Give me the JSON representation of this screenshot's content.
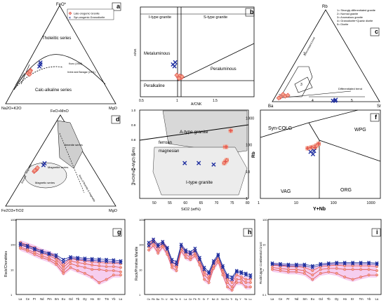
{
  "panels": {
    "a": {
      "letter": "a",
      "apex_top": "FeO*",
      "apex_left": "Na2O+K2O",
      "apex_right": "MgO",
      "label_tholeiitic": "Tholeiitic series",
      "label_calc": "Calc-alkaline series",
      "label_kuno": "Kuno (1968)",
      "label_irvine": "Irvine and Baragar (1971)",
      "label_differentiated": "Differentiated",
      "legend_late": "Late-orogenic Granite",
      "legend_syn": "Syn-orogenic Granodiorite"
    },
    "b": {
      "letter": "b",
      "label_itype": "I-type granite",
      "label_stype": "S-type granite",
      "label_metaluminous": "Metaluminous",
      "label_peraluminous": "Peraluminous",
      "label_peralkaline": "Peralkaline",
      "xlabel": "A/CNK",
      "ylabel": "A/NK",
      "x_ticks": [
        "0.5",
        "1",
        "1.5"
      ],
      "y_ticks": [
        "0.5",
        "1",
        "1.5",
        "2",
        "2.5",
        "3"
      ]
    },
    "c": {
      "letter": "c",
      "apex_top": "Rb",
      "apex_left": "Ba",
      "apex_right": "Sr",
      "legend": [
        "1= Strongly differentiated granite",
        "2= Normal granite",
        "3= Anomalous granite",
        "4= Granodiorite+Quartz diorite",
        "5= Diorite"
      ],
      "zone_labels": [
        "1",
        "2",
        "3",
        "4",
        "5"
      ],
      "label_diff_trend": "Differentiated trend"
    },
    "d": {
      "letter": "d",
      "apex_top": "FeO+MnO",
      "apex_left": "Fe2O3+TiO2",
      "apex_right": "MgO",
      "label_ilmenite": "Ilmenite series",
      "label_magnetite": "Magnetite series",
      "label_magnetic": "Magnetic series",
      "label_area": "Area of ilmenite & magnetite",
      "label_magnetite_axis": "Magnetite",
      "label_ilmenite_axis": "Ilmenite"
    },
    "e": {
      "letter": "e",
      "label_atype": "A-type granite",
      "label_ferroan": "ferroan",
      "label_magnesian": "magnesian",
      "label_itype": "I-type granite",
      "xlabel": "SiO2 (wt%)",
      "ylabel": "FeO/(FeO+MgO) (wt%)",
      "x_ticks": [
        "50",
        "55",
        "60",
        "65",
        "70",
        "75",
        "80"
      ],
      "y_ticks": [
        "0.5",
        "0.6",
        "0.7",
        "0.8",
        "0.9",
        "1.0"
      ]
    },
    "f": {
      "letter": "f",
      "label_syncolg": "Syn-COLG",
      "label_wpg": "WPG",
      "label_vag": "VAG",
      "label_org": "ORG",
      "xlabel": "Y+Nb",
      "ylabel": "Rb",
      "x_ticks": [
        "1",
        "10",
        "100",
        "1000"
      ],
      "y_ticks": [
        "1",
        "10",
        "100",
        "1000"
      ]
    },
    "g": {
      "letter": "g",
      "ylabel": "Rock/Chondrites",
      "elements": [
        "La",
        "Ce",
        "Pr",
        "Nd",
        "Pm",
        "Sm",
        "Eu",
        "Gd",
        "Tb",
        "Dy",
        "Ho",
        "Er",
        "Tm",
        "Yb",
        "Lu"
      ],
      "y_ticks": [
        "1",
        "10",
        "100",
        "1000"
      ]
    },
    "h": {
      "letter": "h",
      "ylabel": "Rock/Primitive Mantle",
      "elements": [
        "Cs",
        "Rb",
        "Ba",
        "Th",
        "U",
        "Nb",
        "Ta",
        "K",
        "La",
        "Ce",
        "Pb",
        "Pr",
        "Sr",
        "P",
        "Nd",
        "Zr",
        "Sm",
        "Eu",
        "Ti",
        "Dy",
        "Y",
        "Yb",
        "Lu"
      ],
      "y_ticks": [
        "1",
        "10",
        "100",
        "1000"
      ]
    },
    "i": {
      "letter": "i",
      "ylabel": "Rock/Upper Continental Crust",
      "elements": [
        "La",
        "Ce",
        "Pr",
        "Nd",
        "Sm",
        "Eu",
        "Gd",
        "Tb",
        "Dy",
        "Ho",
        "Er",
        "Tm",
        "Yb",
        "Lu"
      ],
      "y_ticks": [
        "0.1",
        "1",
        "10",
        "100"
      ]
    }
  },
  "chart_data": [
    {
      "type": "scatter",
      "panel": "a",
      "axes": [
        "FeO*",
        "Na2O+K2O",
        "MgO"
      ],
      "series": [
        {
          "name": "Late-orogenic Granite",
          "marker": "diamond",
          "color": "#e0504a",
          "values": [
            [
              0.32,
              0.62,
              0.06
            ],
            [
              0.31,
              0.64,
              0.05
            ],
            [
              0.34,
              0.6,
              0.06
            ],
            [
              0.3,
              0.63,
              0.07
            ],
            [
              0.33,
              0.61,
              0.06
            ]
          ]
        },
        {
          "name": "Syn-orogenic Granodiorite",
          "marker": "x",
          "color": "#2030a0",
          "values": [
            [
              0.4,
              0.48,
              0.12
            ],
            [
              0.42,
              0.47,
              0.11
            ],
            [
              0.38,
              0.5,
              0.12
            ]
          ]
        }
      ]
    },
    {
      "type": "scatter",
      "panel": "b",
      "xlabel": "A/CNK",
      "ylabel": "A/NK",
      "xlim": [
        0.5,
        2.0
      ],
      "ylim": [
        0.5,
        3.0
      ],
      "series": [
        {
          "name": "Late-orogenic Granite",
          "values": [
            [
              1.0,
              1.05
            ],
            [
              1.02,
              1.08
            ],
            [
              1.04,
              1.03
            ],
            [
              0.98,
              1.1
            ],
            [
              1.05,
              1.06
            ],
            [
              1.01,
              1.01
            ]
          ]
        },
        {
          "name": "Syn-orogenic Granodiorite",
          "values": [
            [
              0.93,
              1.4
            ],
            [
              0.95,
              1.35
            ],
            [
              0.96,
              1.46
            ]
          ]
        }
      ]
    },
    {
      "type": "scatter",
      "panel": "c",
      "axes": [
        "Rb",
        "Ba",
        "Sr"
      ],
      "series": [
        {
          "name": "Late-orogenic Granite",
          "values": [
            [
              0.05,
              0.9,
              0.05
            ],
            [
              0.06,
              0.85,
              0.09
            ],
            [
              0.08,
              0.86,
              0.06
            ],
            [
              0.04,
              0.92,
              0.04
            ],
            [
              0.07,
              0.82,
              0.11
            ]
          ]
        },
        {
          "name": "Syn-orogenic Granodiorite",
          "values": [
            [
              0.01,
              0.43,
              0.56
            ],
            [
              0.01,
              0.41,
              0.58
            ],
            [
              0.02,
              0.4,
              0.58
            ]
          ]
        }
      ]
    },
    {
      "type": "scatter",
      "panel": "d",
      "axes": [
        "FeO+MnO",
        "Fe2O3+TiO2",
        "MgO"
      ],
      "series": [
        {
          "name": "Late-orogenic Granite",
          "values": [
            [
              0.38,
              0.55,
              0.07
            ],
            [
              0.4,
              0.52,
              0.08
            ],
            [
              0.42,
              0.5,
              0.08
            ],
            [
              0.39,
              0.54,
              0.07
            ]
          ]
        },
        {
          "name": "Syn-orogenic Granodiorite",
          "values": [
            [
              0.45,
              0.43,
              0.12
            ],
            [
              0.47,
              0.41,
              0.12
            ]
          ]
        }
      ]
    },
    {
      "type": "scatter",
      "panel": "e",
      "xlabel": "SiO2 (wt%)",
      "ylabel": "FeO/(FeO+MgO) (wt%)",
      "xlim": [
        45,
        80
      ],
      "ylim": [
        0.4,
        1.0
      ],
      "series": [
        {
          "name": "Late-orogenic Granite",
          "values": [
            [
              72.5,
              0.75
            ],
            [
              72.8,
              0.75
            ],
            [
              73.0,
              0.66
            ],
            [
              72.2,
              0.64
            ],
            [
              72.6,
              0.65
            ],
            [
              74.3,
              0.86
            ]
          ]
        },
        {
          "name": "Syn-orogenic Granodiorite",
          "values": [
            [
              59.5,
              0.64
            ],
            [
              64.0,
              0.64
            ],
            [
              68.8,
              0.63
            ]
          ]
        }
      ]
    },
    {
      "type": "scatter",
      "panel": "f",
      "xlabel": "Y+Nb",
      "ylabel": "Rb",
      "xscale": "log",
      "yscale": "log",
      "xlim": [
        1,
        2000
      ],
      "ylim": [
        1,
        2000
      ],
      "series": [
        {
          "name": "Late-orogenic Granite",
          "values": [
            [
              20,
              75
            ],
            [
              25,
              80
            ],
            [
              30,
              85
            ],
            [
              35,
              95
            ],
            [
              40,
              110
            ],
            [
              32,
              80
            ]
          ]
        },
        {
          "name": "Syn-orogenic Granodiorite",
          "values": [
            [
              24,
              55
            ],
            [
              28,
              45
            ],
            [
              30,
              60
            ]
          ]
        }
      ]
    },
    {
      "type": "line",
      "panel": "g",
      "ylabel": "Rock/Chondrites",
      "yscale": "log",
      "ylim": [
        1,
        1000
      ],
      "categories": [
        "La",
        "Ce",
        "Pr",
        "Nd",
        "Pm",
        "Sm",
        "Eu",
        "Gd",
        "Tb",
        "Dy",
        "Ho",
        "Er",
        "Tm",
        "Yb",
        "Lu"
      ],
      "series": [
        {
          "name": "Late-orogenic Granite",
          "values": [
            120,
            95,
            75,
            55,
            45,
            32,
            15,
            28,
            24,
            22,
            20,
            19,
            18,
            18,
            17
          ]
        },
        {
          "name": "Late-orogenic Granite",
          "values": [
            100,
            80,
            60,
            45,
            36,
            26,
            12,
            22,
            19,
            17,
            15,
            14,
            13,
            13,
            12
          ]
        },
        {
          "name": "Late-orogenic Granite",
          "values": [
            80,
            62,
            48,
            36,
            28,
            20,
            9,
            17,
            14,
            12,
            10,
            10,
            9,
            9,
            8
          ]
        },
        {
          "name": "Late-orogenic Granite",
          "values": [
            70,
            55,
            40,
            30,
            24,
            16,
            7,
            12,
            9,
            7,
            5,
            3,
            4,
            6,
            6
          ]
        },
        {
          "name": "Syn-orogenic Granodiorite",
          "values": [
            110,
            90,
            70,
            55,
            45,
            38,
            25,
            32,
            30,
            28,
            27,
            26,
            25,
            24,
            22
          ]
        },
        {
          "name": "Syn-orogenic Granodiorite",
          "values": [
            95,
            78,
            62,
            48,
            40,
            32,
            20,
            28,
            26,
            24,
            23,
            22,
            21,
            20,
            19
          ]
        }
      ]
    },
    {
      "type": "line",
      "panel": "h",
      "ylabel": "Rock/Primitive Mantle",
      "yscale": "log",
      "ylim": [
        1,
        1000
      ],
      "categories": [
        "Cs",
        "Rb",
        "Ba",
        "Th",
        "U",
        "Nb",
        "Ta",
        "K",
        "La",
        "Ce",
        "Pb",
        "Pr",
        "Sr",
        "P",
        "Nd",
        "Zr",
        "Sm",
        "Eu",
        "Ti",
        "Dy",
        "Y",
        "Yb",
        "Lu"
      ],
      "series": [
        {
          "name": "Late-orogenic Granite",
          "values": [
            100,
            150,
            80,
            120,
            70,
            20,
            15,
            90,
            50,
            40,
            60,
            25,
            8,
            5,
            18,
            30,
            10,
            4,
            3,
            6,
            5,
            4,
            4
          ]
        },
        {
          "name": "Late-orogenic Granite",
          "values": [
            80,
            120,
            60,
            100,
            55,
            15,
            12,
            70,
            40,
            30,
            45,
            20,
            6,
            4,
            14,
            25,
            8,
            3,
            2,
            4,
            4,
            3,
            3
          ]
        },
        {
          "name": "Late-orogenic Granite",
          "values": [
            60,
            90,
            45,
            80,
            40,
            12,
            9,
            55,
            30,
            25,
            35,
            15,
            4,
            3,
            11,
            20,
            6,
            2,
            1.5,
            3,
            3,
            2,
            2
          ]
        },
        {
          "name": "Syn-orogenic Granodiorite",
          "values": [
            120,
            160,
            100,
            130,
            75,
            25,
            20,
            100,
            60,
            50,
            70,
            30,
            12,
            8,
            22,
            40,
            14,
            6,
            5,
            9,
            8,
            7,
            6
          ]
        },
        {
          "name": "Syn-orogenic Granodiorite",
          "values": [
            90,
            130,
            85,
            110,
            65,
            20,
            16,
            85,
            50,
            42,
            55,
            25,
            10,
            7,
            18,
            35,
            12,
            5,
            4,
            8,
            7,
            6,
            5
          ]
        }
      ]
    },
    {
      "type": "line",
      "panel": "i",
      "ylabel": "Rock/Upper Continental Crust",
      "yscale": "log",
      "ylim": [
        0.1,
        100
      ],
      "categories": [
        "La",
        "Ce",
        "Pr",
        "Nd",
        "Sm",
        "Eu",
        "Gd",
        "Tb",
        "Dy",
        "Ho",
        "Er",
        "Tm",
        "Yb",
        "Lu"
      ],
      "series": [
        {
          "name": "Late-orogenic Granite",
          "values": [
            1.5,
            1.4,
            1.3,
            1.3,
            1.2,
            0.9,
            1.3,
            1.4,
            1.5,
            1.4,
            1.4,
            1.4,
            1.4,
            1.3
          ]
        },
        {
          "name": "Late-orogenic Granite",
          "values": [
            1.2,
            1.1,
            1.0,
            1.0,
            0.9,
            0.6,
            1.0,
            1.1,
            1.1,
            1.0,
            1.0,
            1.0,
            1.0,
            0.9
          ]
        },
        {
          "name": "Late-orogenic Granite",
          "values": [
            1.0,
            0.9,
            0.8,
            0.8,
            0.7,
            0.4,
            0.7,
            0.8,
            0.7,
            0.5,
            0.4,
            0.5,
            0.6,
            0.6
          ]
        },
        {
          "name": "Syn-orogenic Granodiorite",
          "values": [
            1.8,
            1.7,
            1.6,
            1.6,
            1.6,
            1.4,
            1.7,
            1.8,
            1.9,
            1.9,
            1.9,
            1.9,
            1.9,
            1.8
          ]
        },
        {
          "name": "Syn-orogenic Granodiorite",
          "values": [
            1.6,
            1.5,
            1.4,
            1.4,
            1.4,
            1.2,
            1.5,
            1.6,
            1.7,
            1.7,
            1.7,
            1.7,
            1.7,
            1.6
          ]
        }
      ]
    }
  ],
  "colors": {
    "late": "#e0504a",
    "late_fill": "#f3a38c",
    "syn": "#2030a0",
    "band": "#f5c6ec"
  }
}
